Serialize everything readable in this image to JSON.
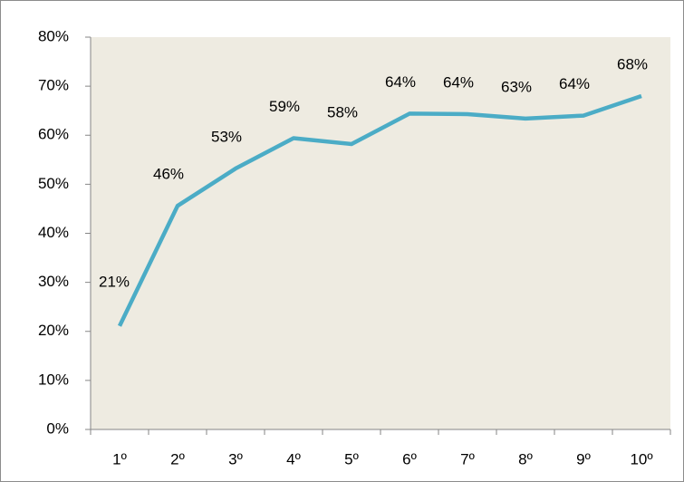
{
  "chart_data": {
    "type": "line",
    "categories": [
      "1º",
      "2º",
      "3º",
      "4º",
      "5º",
      "6º",
      "7º",
      "8º",
      "9º",
      "10º"
    ],
    "series": [
      {
        "color": "#4bacc6",
        "values": [
          21.1,
          45.6,
          53.2,
          59.4,
          58.2,
          64.4,
          64.3,
          63.4,
          64.0,
          68.0
        ],
        "value_labels": [
          "21%",
          "46%",
          "53%",
          "59%",
          "58%",
          "64%",
          "64%",
          "63%",
          "64%",
          "68%"
        ]
      }
    ],
    "ylim": [
      0,
      80
    ],
    "yticks": [
      {
        "value": 0,
        "label": "0%"
      },
      {
        "value": 10,
        "label": "10%"
      },
      {
        "value": 20,
        "label": "20%"
      },
      {
        "value": 30,
        "label": "30%"
      },
      {
        "value": 40,
        "label": "40%"
      },
      {
        "value": 50,
        "label": "50%"
      },
      {
        "value": 60,
        "label": "60%"
      },
      {
        "value": 70,
        "label": "70%"
      },
      {
        "value": 80,
        "label": "80%"
      }
    ],
    "grid": false
  }
}
